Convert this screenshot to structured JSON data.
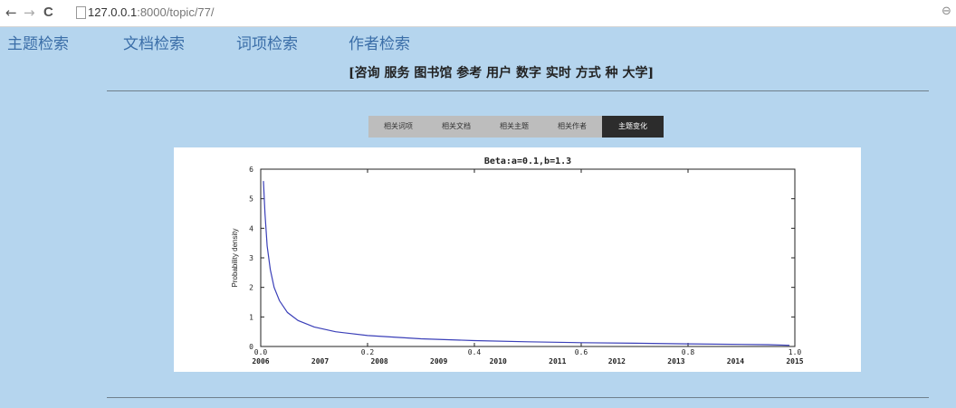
{
  "browser": {
    "url_host": "127.0.0.1",
    "url_rest": ":8000/topic/77/",
    "back_glyph": "←",
    "forward_glyph": "→",
    "reload_glyph": "C"
  },
  "top_nav": [
    {
      "label": "主题检索"
    },
    {
      "label": "文档检索"
    },
    {
      "label": "词项检索"
    },
    {
      "label": "作者检索"
    }
  ],
  "topic_title": "[咨询 服务 图书馆 参考 用户 数字 实时 方式 种 大学]",
  "tabs": [
    {
      "label": "相关词项",
      "active": false
    },
    {
      "label": "相关文档",
      "active": false
    },
    {
      "label": "相关主题",
      "active": false
    },
    {
      "label": "相关作者",
      "active": false
    },
    {
      "label": "主题变化",
      "active": true
    }
  ],
  "chart_data": {
    "type": "line",
    "title": "Beta:a=0.1,b=1.3",
    "ylabel": "Probability density",
    "xlabel": "",
    "xlim": [
      0,
      1
    ],
    "ylim": [
      0,
      6
    ],
    "x_ticks": [
      "0.0",
      "0.2",
      "0.4",
      "0.6",
      "0.8",
      "1.0"
    ],
    "y_ticks": [
      "0",
      "1",
      "2",
      "3",
      "4",
      "5",
      "6"
    ],
    "secondary_x_ticks": [
      "2006",
      "2007",
      "2008",
      "2009",
      "2010",
      "2011",
      "2012",
      "2013",
      "2014",
      "2015"
    ],
    "series": [
      {
        "color": "#3a3fb8",
        "x": [
          0.005,
          0.008,
          0.012,
          0.018,
          0.025,
          0.035,
          0.05,
          0.07,
          0.1,
          0.14,
          0.2,
          0.3,
          0.4,
          0.5,
          0.6,
          0.7,
          0.8,
          0.9,
          0.95,
          0.99
        ],
        "y": [
          5.6,
          4.5,
          3.4,
          2.6,
          2.0,
          1.55,
          1.15,
          0.88,
          0.66,
          0.5,
          0.37,
          0.26,
          0.2,
          0.16,
          0.13,
          0.11,
          0.09,
          0.07,
          0.06,
          0.04
        ]
      }
    ]
  }
}
